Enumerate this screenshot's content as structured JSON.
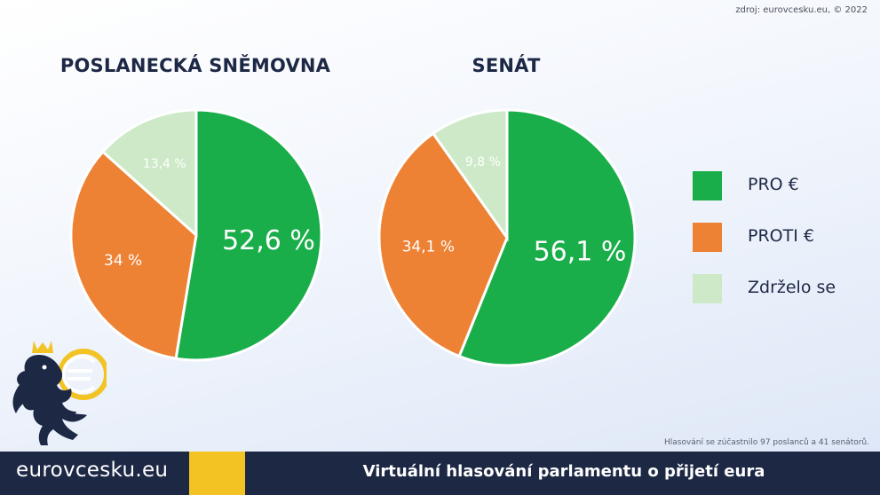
{
  "source": "zdroj: eurovcesku.eu, © 2022",
  "note": "Hlasování se zúčastnilo 97 poslanců a 41 senátorů.",
  "footer": {
    "brand": "eurovcesku.eu",
    "title": "Virtuální hlasování parlamentu o přijetí eura"
  },
  "colors": {
    "pro": "#1aae4a",
    "proti": "#ed8134",
    "zdrzelo": "#cde9c8",
    "navy": "#1d2845",
    "yellow": "#f3c324"
  },
  "legend": [
    {
      "label": "PRO €",
      "color": "#1aae4a"
    },
    {
      "label": "PROTI €",
      "color": "#ed8134"
    },
    {
      "label": "Zdrželo se",
      "color": "#cde9c8"
    }
  ],
  "chart_data": [
    {
      "type": "pie",
      "title": "POSLANECKÁ SNĚMOVNA",
      "categories": [
        "PRO €",
        "PROTI €",
        "Zdrželo se"
      ],
      "values": [
        52.6,
        34,
        13.4
      ],
      "labels": [
        "52,6 %",
        "34 %",
        "13,4 %"
      ],
      "legend_position": "right"
    },
    {
      "type": "pie",
      "title": "SENÁT",
      "categories": [
        "PRO €",
        "PROTI €",
        "Zdrželo se"
      ],
      "values": [
        56.1,
        34.1,
        9.8
      ],
      "labels": [
        "56,1 %",
        "34,1 %",
        "9,8 %"
      ],
      "legend_position": "right"
    }
  ]
}
